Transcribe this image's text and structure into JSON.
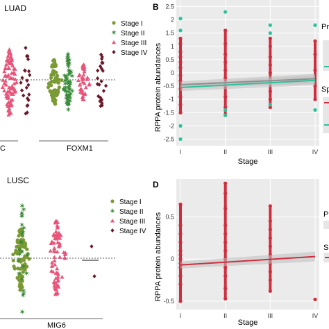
{
  "colors": {
    "stage1": "#7a9a34",
    "stage2": "#3a8a3a",
    "stage3": "#e8557a",
    "stage4": "#6b1a2a",
    "red_points": "#cf2d3d",
    "teal_points": "#2ec09a",
    "panel_bg": "#ebebeb",
    "grid": "#ffffff",
    "fit_line_dark": "#555555",
    "fit_line_teal": "#2ec09a",
    "fit_line_red": "#cf2d3d"
  },
  "panels": {
    "A": {
      "title": "LUAD",
      "legend": [
        "Stage I",
        "Stage II",
        "Stage III",
        "Stage IV"
      ],
      "xlabels": [
        "C",
        "FOXM1"
      ]
    },
    "B": {
      "letter": "B",
      "ylabel": "RPPA protein abundances",
      "xlabel": "Stage",
      "side_labels": [
        "Pr",
        "Sp"
      ]
    },
    "C": {
      "title": "LUSC",
      "legend": [
        "Stage I",
        "Stage II",
        "Stage III",
        "Stage IV"
      ],
      "xlabels": [
        "MIG6"
      ]
    },
    "D": {
      "letter": "D",
      "ylabel": "RPPA protein abundances",
      "xlabel": "Stage",
      "side_labels": [
        "P",
        "S"
      ]
    }
  },
  "chart_data": [
    {
      "panel": "A",
      "type": "scatter",
      "title": "LUAD",
      "categories": [
        "C",
        "FOXM1"
      ],
      "series": [
        {
          "name": "Stage I",
          "values": []
        },
        {
          "name": "Stage II",
          "values": []
        },
        {
          "name": "Stage III",
          "values": []
        },
        {
          "name": "Stage IV",
          "values": []
        }
      ],
      "reference_line": "dashed-horizontal"
    },
    {
      "panel": "B",
      "type": "scatter",
      "xlabel": "Stage",
      "ylabel": "RPPA protein abundances",
      "categories": [
        "I",
        "II",
        "III",
        "IV"
      ],
      "yticks": [
        -2.5,
        -2.0,
        -1.5,
        -1.0,
        -0.5,
        0.0,
        0.5,
        1.0,
        1.5,
        2.0,
        2.5
      ],
      "ylim": [
        -2.75,
        2.75
      ],
      "grid": true,
      "series": [
        {
          "color": "red",
          "x": [
            "I",
            "I",
            "I",
            "I",
            "I",
            "I",
            "I",
            "I",
            "I",
            "I",
            "I",
            "I",
            "II",
            "II",
            "II",
            "II",
            "II",
            "II",
            "II",
            "II",
            "II",
            "II",
            "III",
            "III",
            "III",
            "III",
            "III",
            "III",
            "III",
            "III",
            "III",
            "IV",
            "IV",
            "IV",
            "IV",
            "IV"
          ],
          "values": [
            1.3,
            1.1,
            0.8,
            0.6,
            0.4,
            0.2,
            -0.1,
            -0.3,
            -0.6,
            -0.9,
            -1.2,
            -1.5,
            1.6,
            1.1,
            0.7,
            0.4,
            0.1,
            -0.2,
            -0.5,
            -0.9,
            -1.3,
            -1.6,
            1.3,
            1.0,
            0.6,
            0.3,
            0.0,
            -0.3,
            -0.7,
            -1.0,
            -1.3,
            1.2,
            0.7,
            0.1,
            -0.5,
            -1.0
          ]
        },
        {
          "color": "teal",
          "x": [
            "I",
            "I",
            "I",
            "I",
            "II",
            "II",
            "II",
            "III",
            "III",
            "III",
            "IV",
            "IV"
          ],
          "values": [
            2.05,
            1.6,
            -2.0,
            -2.5,
            2.3,
            -1.4,
            -1.6,
            1.8,
            1.5,
            -1.2,
            1.8,
            -1.4
          ]
        }
      ],
      "fit_lines": [
        {
          "color": "dark",
          "y_at_I": -0.45,
          "y_at_IV": -0.22
        },
        {
          "color": "teal",
          "y_at_I": -0.55,
          "y_at_IV": -0.28
        }
      ]
    },
    {
      "panel": "C",
      "type": "scatter",
      "title": "LUSC",
      "categories": [
        "MIG6"
      ],
      "series": [
        {
          "name": "Stage I",
          "values": []
        },
        {
          "name": "Stage II",
          "values": []
        },
        {
          "name": "Stage III",
          "values": []
        },
        {
          "name": "Stage IV",
          "values": []
        }
      ],
      "reference_line": "dashed-horizontal"
    },
    {
      "panel": "D",
      "type": "scatter",
      "xlabel": "Stage",
      "ylabel": "RPPA protein abundances",
      "categories": [
        "I",
        "II",
        "III",
        "IV"
      ],
      "yticks": [
        -0.5,
        0.0,
        0.5
      ],
      "ylim": [
        -0.6,
        0.95
      ],
      "grid": true,
      "series": [
        {
          "color": "red",
          "x": [
            "I",
            "I",
            "I",
            "I",
            "I",
            "I",
            "I",
            "I",
            "I",
            "I",
            "I",
            "I",
            "II",
            "II",
            "II",
            "II",
            "II",
            "II",
            "II",
            "II",
            "II",
            "II",
            "II",
            "II",
            "III",
            "III",
            "III",
            "III",
            "III",
            "III",
            "III",
            "III",
            "III",
            "III",
            "IV"
          ],
          "values": [
            0.65,
            0.4,
            0.3,
            0.2,
            0.1,
            0.05,
            0.0,
            -0.05,
            -0.1,
            -0.2,
            -0.3,
            -0.5,
            0.9,
            0.78,
            0.6,
            0.4,
            0.3,
            0.2,
            0.1,
            0.0,
            -0.1,
            -0.2,
            -0.35,
            -0.47,
            0.63,
            0.45,
            0.35,
            0.25,
            0.15,
            0.05,
            -0.05,
            -0.15,
            -0.25,
            -0.38,
            -0.48
          ]
        }
      ],
      "fit_lines": [
        {
          "color": "red",
          "y_at_I": -0.07,
          "y_at_IV": 0.03
        }
      ]
    }
  ]
}
